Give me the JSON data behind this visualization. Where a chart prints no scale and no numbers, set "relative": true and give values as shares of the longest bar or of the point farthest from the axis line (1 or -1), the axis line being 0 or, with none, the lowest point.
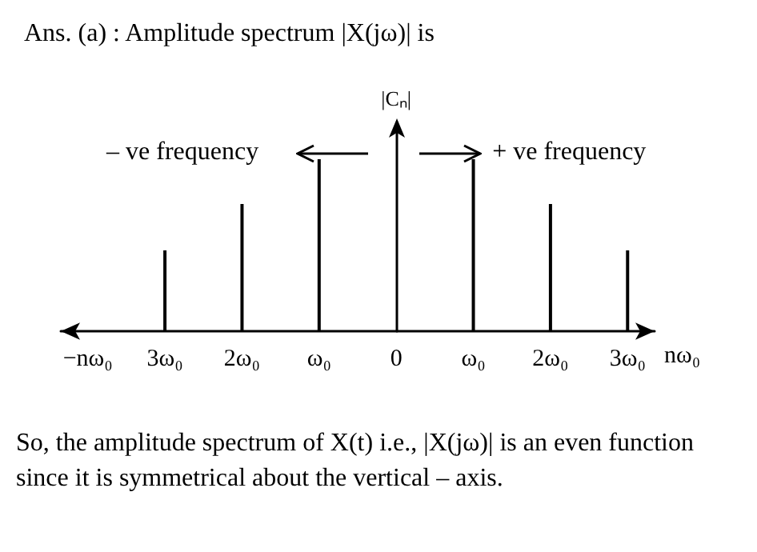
{
  "chart_data": {
    "type": "bar",
    "title": "Ans. (a) : Amplitude spectrum |X(jω)| is",
    "ylabel": "|Cₙ|",
    "xlabel": "nω₀",
    "categories": [
      "−nω₀",
      "3ω₀",
      "2ω₀",
      "ω₀",
      "0",
      "ω₀",
      "2ω₀",
      "3ω₀"
    ],
    "values": [
      null,
      0.47,
      0.74,
      1,
      null,
      1,
      0.74,
      0.47
    ],
    "color": "#000000",
    "relative": true,
    "annotations": [
      "– ve frequency",
      "+ ve frequency",
      "So, the amplitude spectrum of X(t) i.e., |X(jω)| is an even function since it is symmetrical about the vertical – axis."
    ]
  }
}
